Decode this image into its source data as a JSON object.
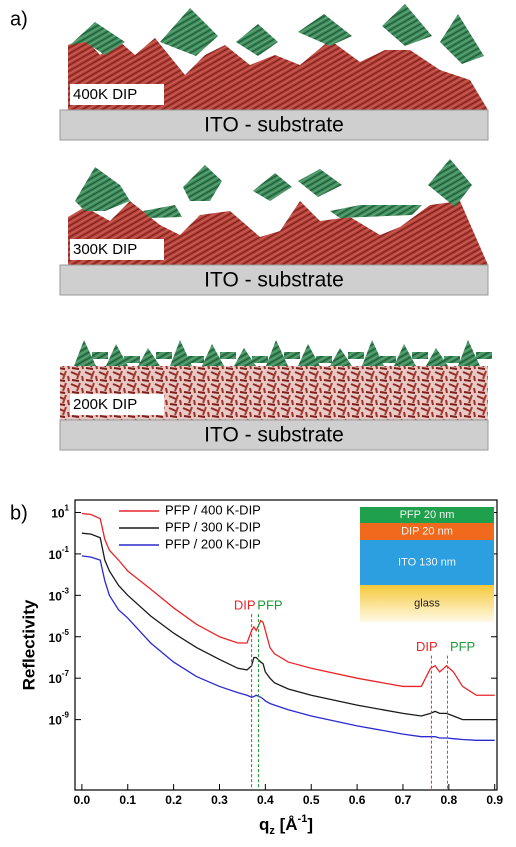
{
  "panel_a": {
    "label": "a)",
    "samples": [
      {
        "label": "400K DIP",
        "substrate": "ITO - substrate"
      },
      {
        "label": "300K DIP",
        "substrate": "ITO - substrate"
      },
      {
        "label": "200K DIP",
        "substrate": "ITO - substrate"
      }
    ]
  },
  "panel_b_label": "b)",
  "inset_layers": [
    {
      "text": "PFP 20 nm",
      "color": "#1fa04c"
    },
    {
      "text": "DIP 20 nm",
      "color": "#f0691c"
    },
    {
      "text": "ITO 130 nm",
      "color": "#2c9fe0"
    },
    {
      "text": "glass",
      "color": "#f6c93a"
    }
  ],
  "chart_data": {
    "type": "line",
    "ylog": true,
    "legend": "upper left",
    "ylabel": "Reflectivity",
    "xlabel": {
      "base": "q",
      "sub": "z",
      "unit": " [Å",
      "sup": "-1",
      "end": "]"
    },
    "xlim": [
      -0.015,
      0.905
    ],
    "xticks": [
      {
        "value": 0,
        "label": "0.0"
      },
      0.1,
      0.2,
      0.3,
      0.4,
      0.5,
      0.6,
      0.7,
      0.8,
      0.9
    ],
    "ylim": [
      4e-13,
      40
    ],
    "yticks": [
      {
        "value": 10,
        "label": "10",
        "exponent": "1"
      },
      {
        "value": 0.1,
        "label": "10",
        "exponent": "-1"
      },
      {
        "value": 0.001,
        "label": "10",
        "exponent": "-3"
      },
      {
        "value": 1e-05,
        "label": "10",
        "exponent": "-5"
      },
      {
        "value": 1e-07,
        "label": "10",
        "exponent": "-7"
      },
      {
        "value": 1e-09,
        "label": "10",
        "exponent": "-9"
      }
    ],
    "x": [
      0,
      0.02,
      0.04,
      0.05,
      0.06,
      0.08,
      0.1,
      0.15,
      0.2,
      0.25,
      0.3,
      0.34,
      0.36,
      0.37,
      0.375,
      0.38,
      0.39,
      0.395,
      0.4,
      0.41,
      0.42,
      0.45,
      0.5,
      0.6,
      0.7,
      0.74,
      0.76,
      0.77,
      0.78,
      0.795,
      0.81,
      0.83,
      0.86,
      0.9
    ],
    "series": [
      {
        "name": "PFP / 400 K-DIP",
        "color": "#e8262a",
        "values": [
          9,
          8,
          5,
          0.5,
          0.15,
          0.05,
          0.015,
          0.002,
          0.00025,
          4e-05,
          1e-05,
          5e-06,
          5e-06,
          2e-05,
          3e-05,
          2e-05,
          6e-05,
          5e-05,
          2e-05,
          3e-06,
          1.5e-06,
          6e-07,
          3e-07,
          1e-07,
          4e-08,
          4e-08,
          3e-07,
          4e-07,
          2e-07,
          4e-07,
          2e-07,
          4e-08,
          1.5e-08,
          1.5e-08
        ]
      },
      {
        "name": "PFP / 300 K-DIP",
        "color": "#1a1a1a",
        "values": [
          1,
          0.9,
          0.6,
          0.05,
          0.015,
          0.003,
          0.001,
          0.0001,
          1.5e-05,
          3e-06,
          8e-07,
          3e-07,
          2.5e-07,
          4e-07,
          1e-06,
          1e-06,
          6e-07,
          5e-07,
          2e-07,
          1e-07,
          6e-08,
          3e-08,
          1.5e-08,
          5e-09,
          2e-09,
          1.5e-09,
          2e-09,
          2.5e-09,
          2e-09,
          2e-09,
          1.5e-09,
          1e-09,
          1e-09,
          1e-09
        ]
      },
      {
        "name": "PFP / 200 K-DIP",
        "color": "#2a2ad0",
        "values": [
          0.08,
          0.07,
          0.05,
          0.005,
          0.001,
          0.0002,
          8e-05,
          5e-06,
          6e-07,
          1.2e-07,
          4e-08,
          2e-08,
          1.5e-08,
          1.2e-08,
          1.3e-08,
          1.5e-08,
          1.2e-08,
          1e-08,
          8e-09,
          6e-09,
          5e-09,
          3e-09,
          1.5e-09,
          5e-10,
          2e-10,
          1.5e-10,
          1.5e-10,
          1.5e-10,
          1.3e-10,
          1.3e-10,
          1.2e-10,
          1.1e-10,
          1e-10,
          1e-10
        ]
      }
    ],
    "annotations": [
      {
        "text": "DIP",
        "color": "#e8262a",
        "x": 0.355,
        "y": 0.0003
      },
      {
        "text": "PFP",
        "color": "#1f9a3a",
        "x": 0.41,
        "y": 0.0003
      },
      {
        "text": "DIP",
        "color": "#e8262a",
        "x": 0.752,
        "y": 3e-06
      },
      {
        "text": "PFP",
        "color": "#1f9a3a",
        "x": 0.83,
        "y": 3e-06
      }
    ],
    "vlines": [
      {
        "x": 0.37,
        "color": "#e8262a"
      },
      {
        "x": 0.385,
        "color": "#1f9a3a"
      },
      {
        "x": 0.762,
        "color": "#e8262a"
      },
      {
        "x": 0.797,
        "color": "#1f9a3a"
      }
    ]
  }
}
